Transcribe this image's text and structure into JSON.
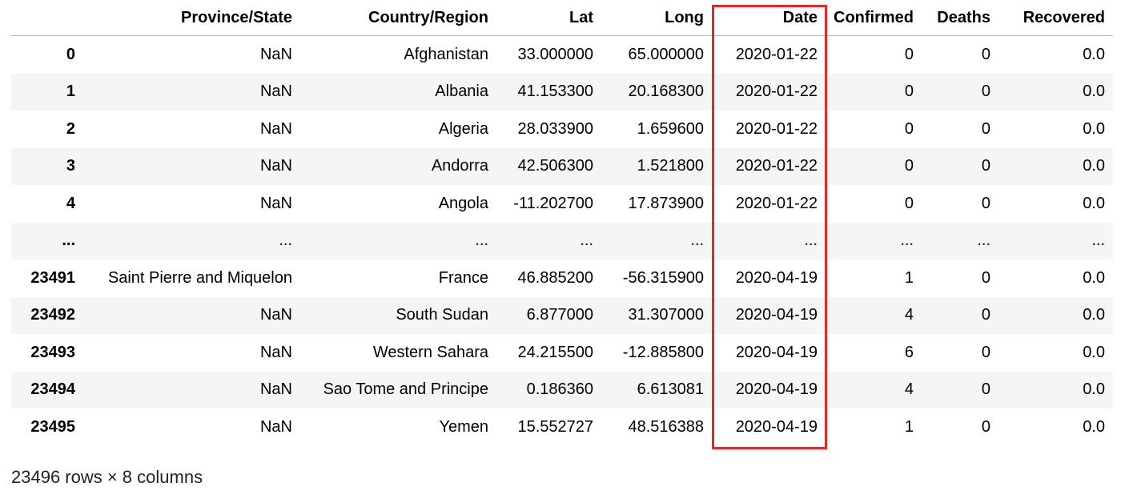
{
  "table": {
    "columns": [
      "Province/State",
      "Country/Region",
      "Lat",
      "Long",
      "Date",
      "Confirmed",
      "Deaths",
      "Recovered"
    ],
    "rows": [
      {
        "index": "0",
        "cells": [
          "NaN",
          "Afghanistan",
          "33.000000",
          "65.000000",
          "2020-01-22",
          "0",
          "0",
          "0.0"
        ]
      },
      {
        "index": "1",
        "cells": [
          "NaN",
          "Albania",
          "41.153300",
          "20.168300",
          "2020-01-22",
          "0",
          "0",
          "0.0"
        ]
      },
      {
        "index": "2",
        "cells": [
          "NaN",
          "Algeria",
          "28.033900",
          "1.659600",
          "2020-01-22",
          "0",
          "0",
          "0.0"
        ]
      },
      {
        "index": "3",
        "cells": [
          "NaN",
          "Andorra",
          "42.506300",
          "1.521800",
          "2020-01-22",
          "0",
          "0",
          "0.0"
        ]
      },
      {
        "index": "4",
        "cells": [
          "NaN",
          "Angola",
          "-11.202700",
          "17.873900",
          "2020-01-22",
          "0",
          "0",
          "0.0"
        ]
      },
      {
        "index": "...",
        "cells": [
          "...",
          "...",
          "...",
          "...",
          "...",
          "...",
          "...",
          "..."
        ]
      },
      {
        "index": "23491",
        "cells": [
          "Saint Pierre and Miquelon",
          "France",
          "46.885200",
          "-56.315900",
          "2020-04-19",
          "1",
          "0",
          "0.0"
        ]
      },
      {
        "index": "23492",
        "cells": [
          "NaN",
          "South Sudan",
          "6.877000",
          "31.307000",
          "2020-04-19",
          "4",
          "0",
          "0.0"
        ]
      },
      {
        "index": "23493",
        "cells": [
          "NaN",
          "Western Sahara",
          "24.215500",
          "-12.885800",
          "2020-04-19",
          "6",
          "0",
          "0.0"
        ]
      },
      {
        "index": "23494",
        "cells": [
          "NaN",
          "Sao Tome and Principe",
          "0.186360",
          "6.613081",
          "2020-04-19",
          "4",
          "0",
          "0.0"
        ]
      },
      {
        "index": "23495",
        "cells": [
          "NaN",
          "Yemen",
          "15.552727",
          "48.516388",
          "2020-04-19",
          "1",
          "0",
          "0.0"
        ]
      }
    ]
  },
  "footer": {
    "shape": "23496 rows × 8 columns"
  },
  "highlight": {
    "column": "Date",
    "color": "#d62c2c"
  }
}
